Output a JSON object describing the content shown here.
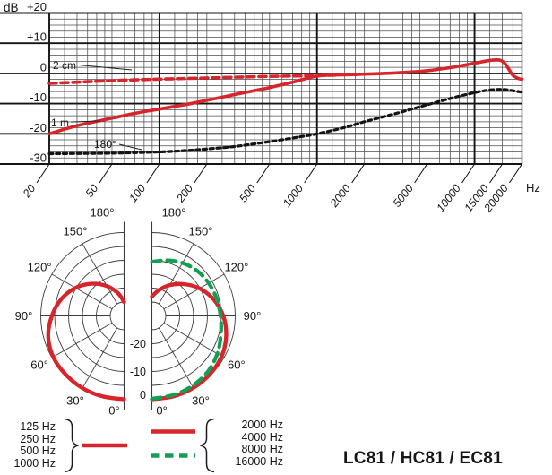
{
  "model": "LC81 / HC81 / EC81",
  "colors": {
    "red": "#d6252b",
    "green": "#149e53",
    "black": "#141414",
    "grid_minor": "#4d4d4d",
    "grid_major": "#141414",
    "polar_grid": "#3c3c3c"
  },
  "labels": {
    "db_unit": "dB",
    "hz_unit": "Hz"
  },
  "legend": {
    "low": {
      "items": [
        "125 Hz",
        "250 Hz",
        "500 Hz",
        "1000 Hz"
      ],
      "style": "solid",
      "color": "red"
    },
    "high_solid": {
      "items": [
        "2000 Hz",
        "4000 Hz"
      ],
      "style": "solid",
      "color": "red"
    },
    "high_dashed": {
      "items": [
        "8000 Hz",
        "16000 Hz"
      ],
      "style": "dashed",
      "color": "green"
    }
  },
  "chart_data": [
    {
      "type": "line",
      "title": "Frequency response",
      "x_axis": {
        "scale": "log",
        "unit": "Hz",
        "min": 20,
        "max": 20000,
        "tick_labels": [
          "20",
          "50",
          "100",
          "200",
          "500",
          "1000",
          "2000",
          "5000",
          "10000",
          "15000",
          "20000"
        ],
        "tick_values": [
          20,
          50,
          100,
          200,
          500,
          1000,
          2000,
          5000,
          10000,
          15000,
          20000
        ],
        "minor_lines": [
          25,
          30,
          35,
          40,
          45,
          50,
          60,
          70,
          80,
          90,
          125,
          150,
          175,
          200,
          250,
          300,
          350,
          400,
          450,
          500,
          600,
          700,
          800,
          900,
          1250,
          1500,
          1750,
          2000,
          2500,
          3000,
          3500,
          4000,
          4500,
          5000,
          6000,
          7000,
          8000,
          9000,
          12500,
          15000,
          17500
        ],
        "major_lines": [
          100,
          1000,
          10000
        ]
      },
      "y_axis": {
        "unit": "dB",
        "min": -30,
        "max": 20,
        "major_step": 10,
        "minor_step": 2,
        "tick_labels": [
          "+20",
          "+10",
          "0",
          "-10",
          "-20",
          "-30"
        ],
        "tick_values": [
          20,
          10,
          0,
          -10,
          -20,
          -30
        ]
      },
      "series": [
        {
          "name": "2 cm",
          "style": "dashed",
          "color": "red",
          "points": [
            [
              20,
              -3.3
            ],
            [
              30,
              -2.9
            ],
            [
              50,
              -2.4
            ],
            [
              100,
              -1.9
            ],
            [
              200,
              -1.5
            ],
            [
              400,
              -1.1
            ],
            [
              700,
              -0.85
            ],
            [
              1000,
              -0.7
            ],
            [
              1300,
              -0.55
            ]
          ]
        },
        {
          "name": "1 m",
          "style": "solid",
          "color": "red",
          "points": [
            [
              20,
              -20
            ],
            [
              30,
              -17.3
            ],
            [
              50,
              -14.8
            ],
            [
              70,
              -13.2
            ],
            [
              100,
              -11.8
            ],
            [
              150,
              -10.2
            ],
            [
              200,
              -8.9
            ],
            [
              300,
              -7
            ],
            [
              400,
              -5.7
            ],
            [
              500,
              -4.7
            ],
            [
              700,
              -2.9
            ],
            [
              900,
              -1.4
            ],
            [
              1100,
              -0.65
            ],
            [
              1500,
              -0.45
            ],
            [
              2000,
              -0.25
            ],
            [
              3000,
              0.1
            ],
            [
              4000,
              0.5
            ],
            [
              5000,
              0.9
            ],
            [
              7000,
              1.9
            ],
            [
              9000,
              2.9
            ],
            [
              11000,
              3.8
            ],
            [
              13000,
              4.4
            ],
            [
              14500,
              4.4
            ],
            [
              15500,
              3.4
            ],
            [
              16500,
              1.4
            ],
            [
              17500,
              -0.6
            ],
            [
              19000,
              -1.7
            ],
            [
              20000,
              -1.9
            ]
          ]
        },
        {
          "name": "180°",
          "style": "dotted",
          "color": "black",
          "points": [
            [
              20,
              -26.6
            ],
            [
              50,
              -26.4
            ],
            [
              100,
              -26
            ],
            [
              150,
              -25.5
            ],
            [
              200,
              -25
            ],
            [
              300,
              -24.2
            ],
            [
              500,
              -22.6
            ],
            [
              700,
              -21.4
            ],
            [
              1000,
              -20
            ],
            [
              1500,
              -17.9
            ],
            [
              2000,
              -16
            ],
            [
              3000,
              -13.6
            ],
            [
              4000,
              -11.8
            ],
            [
              5000,
              -10.4
            ],
            [
              7000,
              -8.3
            ],
            [
              9000,
              -6.9
            ],
            [
              11000,
              -5.9
            ],
            [
              13000,
              -5.4
            ],
            [
              15000,
              -5.3
            ],
            [
              17000,
              -5.6
            ],
            [
              20000,
              -6.2
            ]
          ]
        }
      ]
    },
    {
      "type": "polar",
      "title": "Polar patterns",
      "rings_db": [
        -25,
        -20,
        -15,
        -10,
        -5,
        0
      ],
      "db_per_ring": 5,
      "radial_labels": [
        {
          "text": "-20",
          "db": -20
        },
        {
          "text": "-10",
          "db": -10
        },
        {
          "text": "0",
          "db": 0
        }
      ],
      "angle_labels": [
        "0°",
        "30°",
        "60°",
        "90°",
        "120°",
        "150°",
        "180°"
      ],
      "discs": [
        {
          "side": "left",
          "curves": [
            {
              "name": "125-1000 Hz",
              "style": "solid",
              "color": "red",
              "points_deg_db": [
                [
                  0,
                  0
                ],
                [
                  15,
                  0
                ],
                [
                  30,
                  0
                ],
                [
                  45,
                  -0.2
                ],
                [
                  60,
                  -0.5
                ],
                [
                  75,
                  -1.7
                ],
                [
                  90,
                  -4
                ],
                [
                  105,
                  -6.6
                ],
                [
                  120,
                  -9.8
                ],
                [
                  135,
                  -13.6
                ],
                [
                  150,
                  -17.6
                ],
                [
                  165,
                  -21.6
                ],
                [
                  180,
                  -25
                ]
              ]
            }
          ]
        },
        {
          "side": "right",
          "curves": [
            {
              "name": "2000-4000 Hz",
              "style": "solid",
              "color": "red",
              "points_deg_db": [
                [
                  0,
                  0
                ],
                [
                  15,
                  0
                ],
                [
                  30,
                  -0.1
                ],
                [
                  45,
                  -0.4
                ],
                [
                  60,
                  -1
                ],
                [
                  75,
                  -2.3
                ],
                [
                  90,
                  -4.3
                ],
                [
                  105,
                  -7
                ],
                [
                  120,
                  -10.2
                ],
                [
                  135,
                  -13.8
                ],
                [
                  150,
                  -17.2
                ],
                [
                  165,
                  -20.4
                ],
                [
                  180,
                  -23
                ]
              ]
            },
            {
              "name": "8000-16000 Hz",
              "style": "dashed",
              "color": "green",
              "points_deg_db": [
                [
                  0,
                  -0.2
                ],
                [
                  15,
                  -0.5
                ],
                [
                  30,
                  -0.9
                ],
                [
                  45,
                  -1.6
                ],
                [
                  60,
                  -2.8
                ],
                [
                  75,
                  -4.3
                ],
                [
                  90,
                  -5.3
                ],
                [
                  105,
                  -5.9
                ],
                [
                  120,
                  -6.4
                ],
                [
                  135,
                  -7
                ],
                [
                  150,
                  -8
                ],
                [
                  165,
                  -9.3
                ],
                [
                  180,
                  -10.5
                ]
              ]
            }
          ]
        }
      ]
    }
  ]
}
